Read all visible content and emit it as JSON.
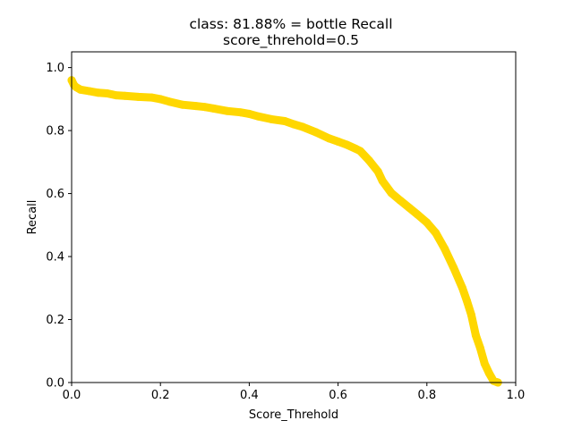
{
  "chart_data": {
    "type": "line",
    "title": "class: 81.88% = bottle Recall",
    "subtitle": "score_threhold=0.5",
    "xlabel": "Score_Threhold",
    "ylabel": "Recall",
    "xlim": [
      0.0,
      1.0
    ],
    "ylim": [
      0.0,
      1.05
    ],
    "xticks": [
      "0.0",
      "0.2",
      "0.4",
      "0.6",
      "0.8",
      "1.0"
    ],
    "yticks": [
      "0.0",
      "0.2",
      "0.4",
      "0.6",
      "0.8",
      "1.0"
    ],
    "grid": false,
    "series": [
      {
        "color": "#FFD700",
        "x": [
          0.0,
          0.005,
          0.01,
          0.02,
          0.04,
          0.06,
          0.08,
          0.1,
          0.12,
          0.15,
          0.18,
          0.2,
          0.22,
          0.25,
          0.28,
          0.3,
          0.32,
          0.35,
          0.38,
          0.4,
          0.42,
          0.45,
          0.48,
          0.5,
          0.52,
          0.55,
          0.58,
          0.6,
          0.62,
          0.64,
          0.65,
          0.67,
          0.69,
          0.7,
          0.72,
          0.74,
          0.76,
          0.78,
          0.8,
          0.82,
          0.84,
          0.86,
          0.88,
          0.89,
          0.9,
          0.91,
          0.92,
          0.93,
          0.94,
          0.95,
          0.96
        ],
        "y": [
          0.96,
          0.945,
          0.938,
          0.93,
          0.925,
          0.92,
          0.918,
          0.912,
          0.91,
          0.907,
          0.905,
          0.9,
          0.892,
          0.882,
          0.878,
          0.875,
          0.87,
          0.862,
          0.858,
          0.853,
          0.845,
          0.836,
          0.83,
          0.82,
          0.812,
          0.795,
          0.775,
          0.765,
          0.755,
          0.742,
          0.735,
          0.705,
          0.67,
          0.64,
          0.602,
          0.578,
          0.555,
          0.532,
          0.508,
          0.475,
          0.425,
          0.365,
          0.3,
          0.26,
          0.215,
          0.15,
          0.11,
          0.06,
          0.03,
          0.005,
          0.0
        ]
      }
    ]
  }
}
